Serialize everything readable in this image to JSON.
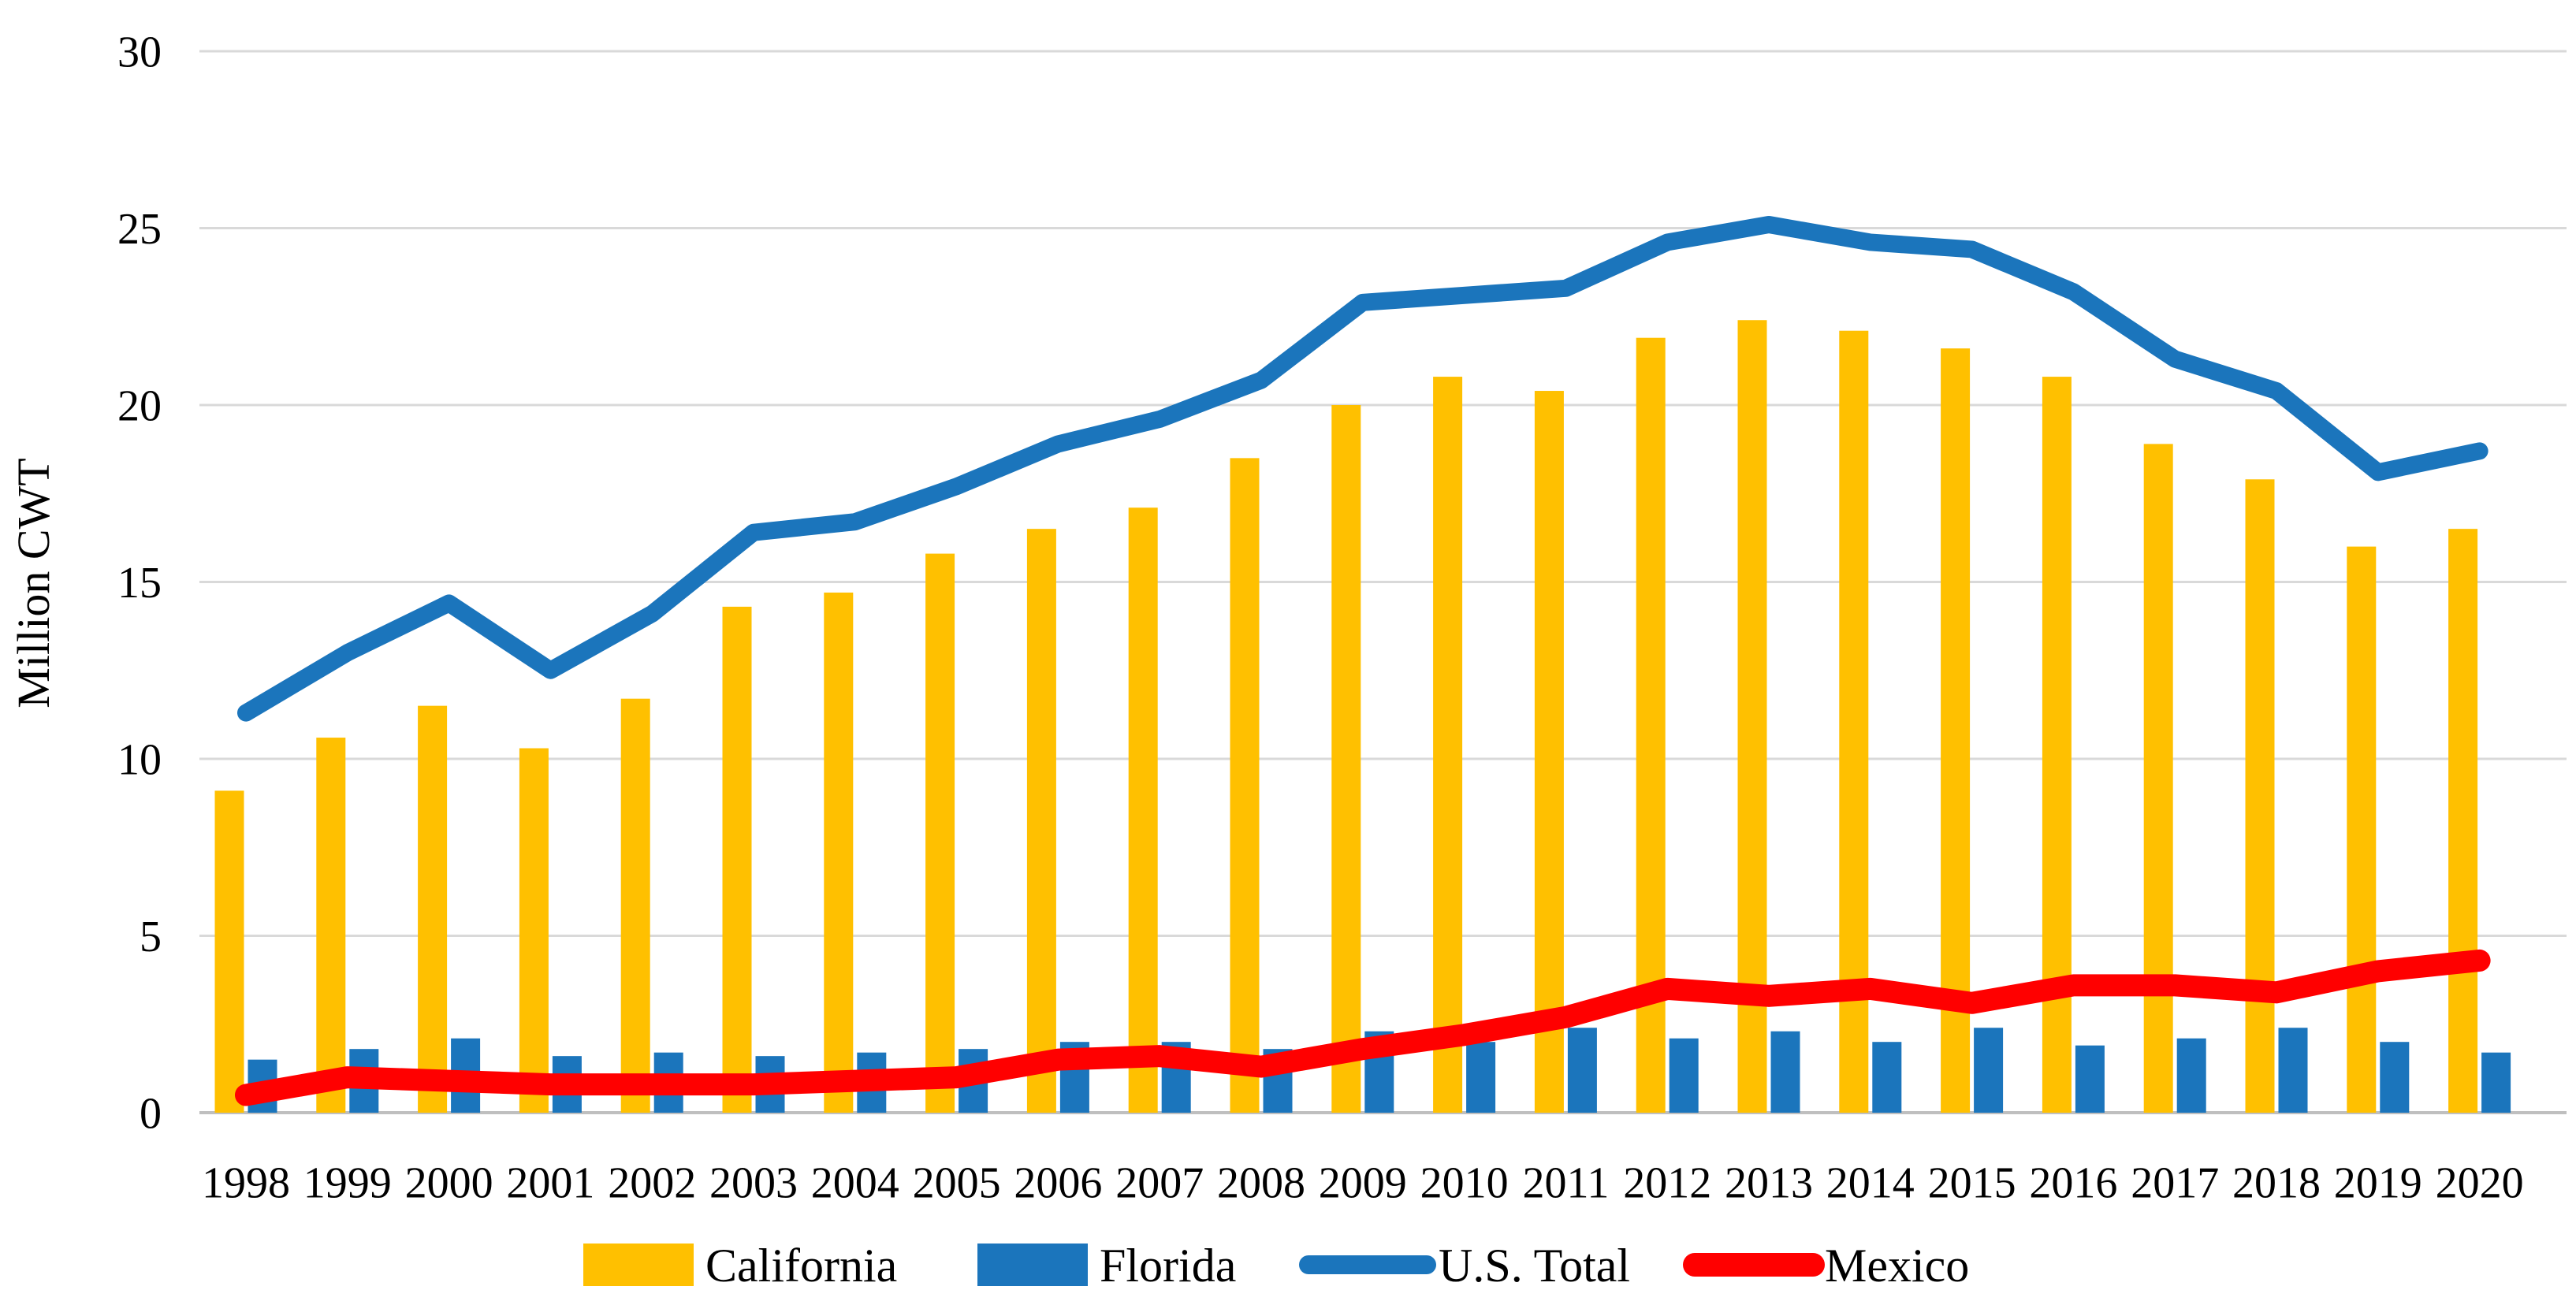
{
  "figure": {
    "title": "",
    "ylabel": "Million CWT"
  },
  "chart_data": {
    "type": "combo-bar-line",
    "title": "",
    "xlabel": "",
    "ylabel": "Million CWT",
    "ylim": [
      0,
      30
    ],
    "yticks": [
      0,
      5,
      10,
      15,
      20,
      25,
      30
    ],
    "grid": true,
    "legend_position": "bottom",
    "categories": [
      "1998",
      "1999",
      "2000",
      "2001",
      "2002",
      "2003",
      "2004",
      "2005",
      "2006",
      "2007",
      "2008",
      "2009",
      "2010",
      "2011",
      "2012",
      "2013",
      "2014",
      "2015",
      "2016",
      "2017",
      "2018",
      "2019",
      "2020"
    ],
    "series": [
      {
        "name": "California",
        "type": "bar",
        "color": "#FFC000",
        "values": [
          9.1,
          10.6,
          11.5,
          10.3,
          11.7,
          14.3,
          14.7,
          15.8,
          16.5,
          17.1,
          18.5,
          20.0,
          20.8,
          20.4,
          21.9,
          22.4,
          22.1,
          21.6,
          20.8,
          18.9,
          17.9,
          16.0,
          16.5
        ]
      },
      {
        "name": "Florida",
        "type": "bar",
        "color": "#1B75BC",
        "values": [
          1.5,
          1.8,
          2.1,
          1.6,
          1.7,
          1.6,
          1.7,
          1.8,
          2.0,
          2.0,
          1.8,
          2.3,
          2.0,
          2.4,
          2.1,
          2.3,
          2.0,
          2.4,
          1.9,
          2.1,
          2.4,
          2.0,
          1.7
        ]
      },
      {
        "name": "U.S. Total",
        "type": "line",
        "color": "#1B75BC",
        "values": [
          11.3,
          13.0,
          14.4,
          12.5,
          14.1,
          16.4,
          16.7,
          17.7,
          18.9,
          19.6,
          20.7,
          22.9,
          23.1,
          23.3,
          24.6,
          25.1,
          24.6,
          24.4,
          23.2,
          21.3,
          20.4,
          18.1,
          18.7
        ]
      },
      {
        "name": "Mexico",
        "type": "line",
        "color": "#FF0000",
        "values": [
          0.5,
          1.0,
          0.9,
          0.8,
          0.8,
          0.8,
          0.9,
          1.0,
          1.5,
          1.6,
          1.3,
          1.8,
          2.2,
          2.7,
          3.5,
          3.3,
          3.5,
          3.1,
          3.6,
          3.6,
          3.4,
          4.0,
          4.3
        ]
      }
    ],
    "colors": {
      "gridline": "#D9D9D9",
      "axis_line": "#BFBFBF",
      "text": "#000000",
      "background": "#FFFFFF"
    }
  }
}
